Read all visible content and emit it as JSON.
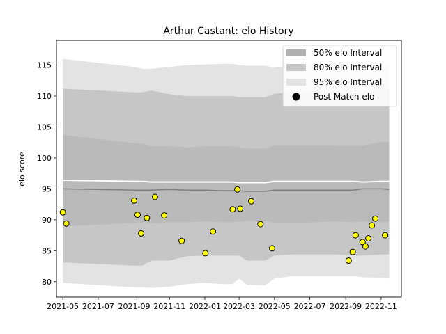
{
  "chart_data": {
    "type": "scatter",
    "title": "Arthur Castant: elo History",
    "xlabel": "",
    "ylabel": "elo score",
    "xlim": [
      "2021-04-20",
      "2022-12-06"
    ],
    "ylim": [
      77.5,
      119.0
    ],
    "x_ticks": [
      {
        "date": "2021-05-01",
        "label": "2021-05"
      },
      {
        "date": "2021-07-01",
        "label": "2021-07"
      },
      {
        "date": "2021-09-01",
        "label": "2021-09"
      },
      {
        "date": "2021-11-01",
        "label": "2021-11"
      },
      {
        "date": "2022-01-01",
        "label": "2022-01"
      },
      {
        "date": "2022-03-01",
        "label": "2022-03"
      },
      {
        "date": "2022-05-01",
        "label": "2022-05"
      },
      {
        "date": "2022-07-01",
        "label": "2022-07"
      },
      {
        "date": "2022-09-01",
        "label": "2022-09"
      },
      {
        "date": "2022-11-01",
        "label": "2022-11"
      }
    ],
    "y_ticks": [
      80,
      85,
      90,
      95,
      100,
      105,
      110,
      115
    ],
    "grid": false,
    "legend_position": "top-right",
    "legend": [
      {
        "label": "50% elo Interval",
        "color": "#b0b0b0",
        "kind": "patch"
      },
      {
        "label": "80% elo Interval",
        "color": "#c6c6c6",
        "kind": "patch"
      },
      {
        "label": "95% elo Interval",
        "color": "#e3e3e3",
        "kind": "patch"
      },
      {
        "label": "Post Match elo",
        "color": "#000000",
        "kind": "marker"
      }
    ],
    "colors": {
      "band50": "#b0b0b0",
      "band80": "#c6c6c6",
      "band95": "#e3e3e3",
      "mean_line": "#7f7f7f",
      "points_fill": "#ffff00",
      "points_edge": "#000000"
    },
    "band_dates": [
      "2021-05-01",
      "2021-09-01",
      "2021-09-15",
      "2021-10-01",
      "2021-11-01",
      "2021-12-01",
      "2022-01-01",
      "2022-02-01",
      "2022-02-18",
      "2022-03-01",
      "2022-03-15",
      "2022-04-15",
      "2022-05-01",
      "2022-06-01",
      "2022-08-15",
      "2022-09-15",
      "2022-10-01",
      "2022-11-01",
      "2022-11-15"
    ],
    "band95_low": [
      79.8,
      79.1,
      79.1,
      79.0,
      79.2,
      79.6,
      79.8,
      79.6,
      79.6,
      80.5,
      79.5,
      79.4,
      80.5,
      80.9,
      80.9,
      80.9,
      80.7,
      80.6,
      80.5
    ],
    "band95_high": [
      116.0,
      114.7,
      114.4,
      114.4,
      114.7,
      115.0,
      115.1,
      115.2,
      115.2,
      115.0,
      114.9,
      114.9,
      114.6,
      115.0,
      115.1,
      115.2,
      115.1,
      115.1,
      115.1
    ],
    "band80_low": [
      83.1,
      82.6,
      82.6,
      83.4,
      83.4,
      84.1,
      84.2,
      84.2,
      84.2,
      84.2,
      83.4,
      83.4,
      84.2,
      84.4,
      84.4,
      84.2,
      84.2,
      84.4,
      84.4
    ],
    "band80_high": [
      111.2,
      110.6,
      110.6,
      110.9,
      110.3,
      110.0,
      110.0,
      110.0,
      110.0,
      109.8,
      109.8,
      109.8,
      110.4,
      110.6,
      110.6,
      110.4,
      110.6,
      111.2,
      111.2
    ],
    "band50_low": [
      88.9,
      89.5,
      89.6,
      89.4,
      89.6,
      89.6,
      89.7,
      89.6,
      89.6,
      89.7,
      89.8,
      89.8,
      89.5,
      89.5,
      89.7,
      89.6,
      89.7,
      89.6,
      89.6
    ],
    "band50_high": [
      103.7,
      102.4,
      102.3,
      101.9,
      101.9,
      101.7,
      101.9,
      101.9,
      101.9,
      101.7,
      101.5,
      101.5,
      102.0,
      102.0,
      102.0,
      101.9,
      102.0,
      102.6,
      102.6
    ],
    "band50_upper_edge": [
      96.4,
      96.2,
      96.2,
      96.1,
      96.1,
      96.1,
      96.1,
      96.1,
      96.1,
      96.0,
      96.0,
      96.0,
      96.2,
      96.2,
      96.2,
      96.2,
      96.1,
      96.2,
      96.2
    ],
    "mean": [
      95.0,
      94.8,
      94.8,
      94.8,
      94.9,
      94.8,
      94.8,
      94.7,
      94.7,
      94.7,
      94.6,
      94.6,
      94.8,
      94.8,
      94.8,
      94.8,
      95.0,
      95.0,
      94.9
    ],
    "points": [
      {
        "date": "2021-05-01",
        "y": 91.2
      },
      {
        "date": "2021-05-07",
        "y": 89.4
      },
      {
        "date": "2021-09-01",
        "y": 93.1
      },
      {
        "date": "2021-09-07",
        "y": 90.8
      },
      {
        "date": "2021-09-13",
        "y": 87.8
      },
      {
        "date": "2021-09-23",
        "y": 90.3
      },
      {
        "date": "2021-10-07",
        "y": 93.7
      },
      {
        "date": "2021-10-23",
        "y": 90.7
      },
      {
        "date": "2021-11-22",
        "y": 86.6
      },
      {
        "date": "2022-01-02",
        "y": 84.6
      },
      {
        "date": "2022-01-15",
        "y": 88.1
      },
      {
        "date": "2022-02-18",
        "y": 91.7
      },
      {
        "date": "2022-02-26",
        "y": 94.9
      },
      {
        "date": "2022-03-03",
        "y": 91.8
      },
      {
        "date": "2022-03-22",
        "y": 93.0
      },
      {
        "date": "2022-04-07",
        "y": 89.3
      },
      {
        "date": "2022-04-27",
        "y": 85.4
      },
      {
        "date": "2022-09-06",
        "y": 83.4
      },
      {
        "date": "2022-09-13",
        "y": 84.8
      },
      {
        "date": "2022-09-18",
        "y": 87.5
      },
      {
        "date": "2022-09-30",
        "y": 86.4
      },
      {
        "date": "2022-10-05",
        "y": 85.7
      },
      {
        "date": "2022-10-10",
        "y": 87.0
      },
      {
        "date": "2022-10-16",
        "y": 89.1
      },
      {
        "date": "2022-10-22",
        "y": 90.2
      },
      {
        "date": "2022-11-08",
        "y": 87.5
      }
    ]
  }
}
